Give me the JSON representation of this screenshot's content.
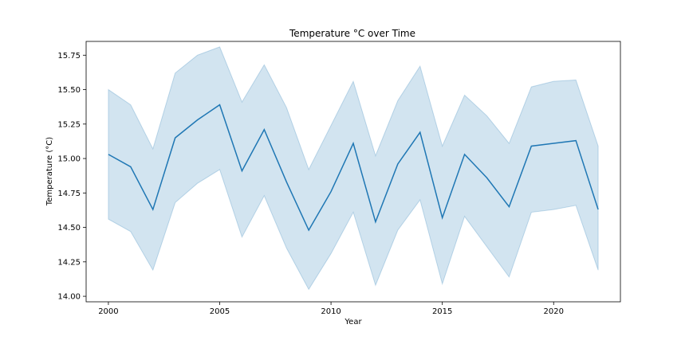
{
  "chart_data": {
    "type": "line",
    "title": "Temperature °C over Time",
    "xlabel": "Year",
    "ylabel": "Temperature (°C)",
    "xlim": [
      1999,
      2023
    ],
    "ylim": [
      13.96,
      15.85
    ],
    "xticks": [
      2000,
      2005,
      2010,
      2015,
      2020
    ],
    "yticks": [
      14.0,
      14.25,
      14.5,
      14.75,
      15.0,
      15.25,
      15.5,
      15.75
    ],
    "ytick_labels": [
      "14.00",
      "14.25",
      "14.50",
      "14.75",
      "15.00",
      "15.25",
      "15.50",
      "15.75"
    ],
    "grid": false,
    "legend": false,
    "colors": {
      "line": "#1f77b4",
      "band": "#1f77b4",
      "band_opacity": 0.2
    },
    "x": [
      2000,
      2001,
      2002,
      2003,
      2004,
      2005,
      2006,
      2007,
      2008,
      2009,
      2010,
      2011,
      2012,
      2013,
      2014,
      2015,
      2016,
      2017,
      2018,
      2019,
      2020,
      2021,
      2022
    ],
    "series": [
      {
        "values": [
          15.03,
          14.94,
          14.63,
          15.15,
          15.28,
          15.39,
          14.91,
          15.21,
          14.83,
          14.48,
          14.76,
          15.11,
          14.54,
          14.96,
          15.19,
          14.57,
          15.03,
          14.86,
          14.65,
          15.09,
          15.11,
          15.13,
          14.63
        ],
        "upper": [
          15.5,
          15.39,
          15.07,
          15.62,
          15.75,
          15.81,
          15.41,
          15.68,
          15.37,
          14.92,
          15.24,
          15.56,
          15.02,
          15.42,
          15.67,
          15.09,
          15.46,
          15.31,
          15.11,
          15.52,
          15.56,
          15.57,
          15.09
        ],
        "lower": [
          14.56,
          14.47,
          14.19,
          14.68,
          14.82,
          14.92,
          14.43,
          14.73,
          14.35,
          14.05,
          14.31,
          14.61,
          14.08,
          14.48,
          14.7,
          14.09,
          14.58,
          14.36,
          14.14,
          14.61,
          14.63,
          14.66,
          14.19
        ]
      }
    ]
  }
}
